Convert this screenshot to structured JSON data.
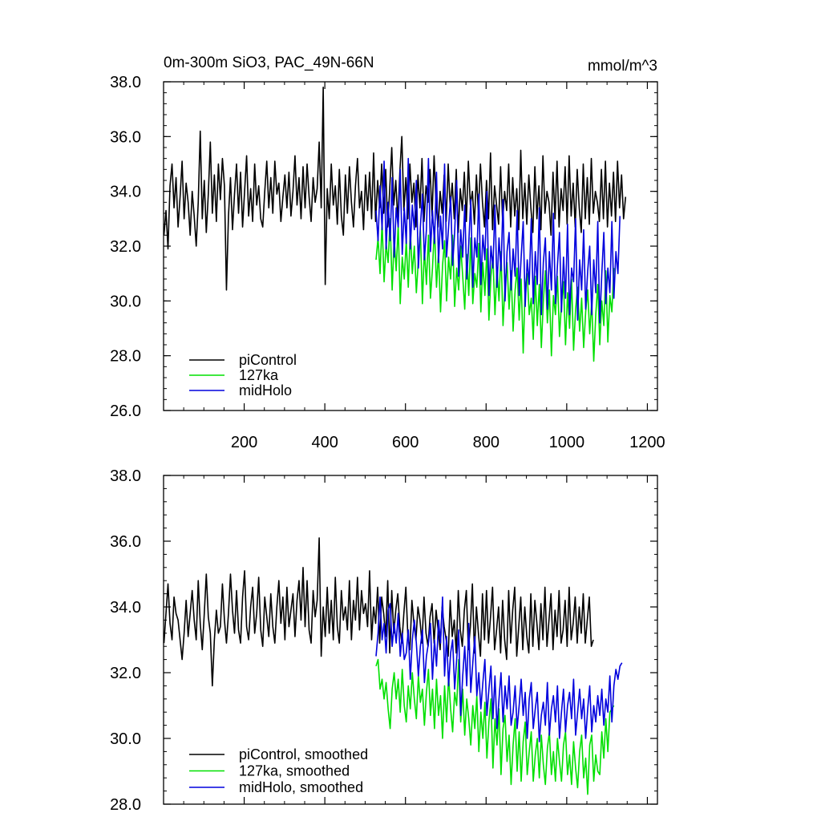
{
  "chart_data": [
    {
      "type": "line",
      "title": "0m-300m SiO3, PAC_49N-66N",
      "units": "mmol/m^3",
      "xlabel": "",
      "ylabel": "",
      "xlim": [
        0,
        1225
      ],
      "ylim": [
        26.0,
        38.0
      ],
      "yticks": [
        "26.0",
        "28.0",
        "30.0",
        "32.0",
        "34.0",
        "36.0",
        "38.0"
      ],
      "xticks": [
        "200",
        "400",
        "600",
        "800",
        "1000",
        "1200"
      ],
      "legend_position": "bottom-left",
      "series": [
        {
          "name": "piControl",
          "color": "#000000",
          "x_start": 1,
          "step": 5,
          "values": [
            32.4,
            33.3,
            31.9,
            34.2,
            35.0,
            33.4,
            34.5,
            32.7,
            33.8,
            35.1,
            33.0,
            34.3,
            33.6,
            32.4,
            34.0,
            33.1,
            32.0,
            33.6,
            36.2,
            33.0,
            34.4,
            32.5,
            33.9,
            35.8,
            33.2,
            34.6,
            32.9,
            35.0,
            33.7,
            35.2,
            34.2,
            30.4,
            33.1,
            34.5,
            32.6,
            33.9,
            35.0,
            33.2,
            34.7,
            32.7,
            34.0,
            35.3,
            33.1,
            34.1,
            32.9,
            35.0,
            33.5,
            34.2,
            33.0,
            32.7,
            34.0,
            35.1,
            33.4,
            34.5,
            33.2,
            35.1,
            33.9,
            34.3,
            32.9,
            33.8,
            34.6,
            33.4,
            34.7,
            33.1,
            34.0,
            35.3,
            33.5,
            34.5,
            33.0,
            34.9,
            33.4,
            35.0,
            33.8,
            32.9,
            34.5,
            33.6,
            34.1,
            35.8,
            33.4,
            37.8,
            30.6,
            34.1,
            33.0,
            35.0,
            33.5,
            34.2,
            32.8,
            34.8,
            33.1,
            32.4,
            34.6,
            33.2,
            34.9,
            33.6,
            32.7,
            34.2,
            35.2,
            33.4,
            34.0,
            32.6,
            34.6,
            33.3,
            34.7,
            33.0,
            35.4,
            32.9,
            34.4,
            33.4,
            35.0,
            33.2,
            34.8,
            32.7,
            34.1,
            35.6,
            33.5,
            34.4,
            32.9,
            34.7,
            36.0,
            33.3,
            34.5,
            33.0,
            35.0,
            33.6,
            34.3,
            32.7,
            34.6,
            33.4,
            35.2,
            32.9,
            34.2,
            33.6,
            34.8,
            33.1,
            35.3,
            33.5,
            32.7,
            34.0,
            33.2,
            34.6,
            32.9,
            35.0,
            33.4,
            34.3,
            33.0,
            34.8,
            32.5,
            34.1,
            33.3,
            34.7,
            32.9,
            35.1,
            33.5,
            34.0,
            32.8,
            34.6,
            33.2,
            35.0,
            33.6,
            32.7,
            34.4,
            33.0,
            35.4,
            32.6,
            34.2,
            33.5,
            32.8,
            34.9,
            32.9,
            34.0,
            33.3,
            35.0,
            32.7,
            34.5,
            33.1,
            34.1,
            32.6,
            35.5,
            33.0,
            34.3,
            32.8,
            34.6,
            33.4,
            32.5,
            34.9,
            33.0,
            34.2,
            32.6,
            35.3,
            33.2,
            34.0,
            33.6,
            32.4,
            34.7,
            33.0,
            35.1,
            32.7,
            34.1,
            33.3,
            34.9,
            32.8,
            35.3,
            33.1,
            34.3,
            32.7,
            34.8,
            33.4,
            32.5,
            35.0,
            33.0,
            34.5,
            32.8,
            35.2,
            33.2,
            34.0,
            33.6,
            32.9,
            34.8,
            33.0,
            35.1,
            32.7,
            34.3,
            33.1,
            34.7,
            32.9,
            35.1,
            33.4,
            34.6,
            33.0,
            33.8
          ]
        },
        {
          "name": "127ka",
          "color": "#00e000",
          "x_start": 527,
          "step": 5,
          "values": [
            31.5,
            32.3,
            31.0,
            32.9,
            30.7,
            32.1,
            31.4,
            33.0,
            30.4,
            32.3,
            31.1,
            32.8,
            29.9,
            31.6,
            30.8,
            32.2,
            30.5,
            32.6,
            31.0,
            32.0,
            30.3,
            31.5,
            32.6,
            29.9,
            31.9,
            30.6,
            32.4,
            30.1,
            31.2,
            32.7,
            30.5,
            31.8,
            29.6,
            31.3,
            32.2,
            30.0,
            31.6,
            30.8,
            32.4,
            29.8,
            31.2,
            30.4,
            32.0,
            30.9,
            29.7,
            31.7,
            30.2,
            32.3,
            29.9,
            31.0,
            30.5,
            32.1,
            29.6,
            31.4,
            30.2,
            31.9,
            29.3,
            30.9,
            31.6,
            29.5,
            31.2,
            30.0,
            31.8,
            29.1,
            30.6,
            31.4,
            29.7,
            31.1,
            28.9,
            30.4,
            31.2,
            29.3,
            30.8,
            28.1,
            30.5,
            31.0,
            29.5,
            30.1,
            28.6,
            30.9,
            29.1,
            30.6,
            28.3,
            30.0,
            31.1,
            29.2,
            30.4,
            28.0,
            30.2,
            29.5,
            30.9,
            28.7,
            29.9,
            30.7,
            28.4,
            30.3,
            29.0,
            30.8,
            28.2,
            29.7,
            30.5,
            28.9,
            30.1,
            28.3,
            29.6,
            30.4,
            28.8,
            30.0,
            27.8,
            29.5,
            30.6,
            28.4,
            30.0,
            29.1,
            31.1,
            28.5,
            30.2,
            29.6,
            31.2
          ]
        },
        {
          "name": "midHolo",
          "color": "#0000dd",
          "x_start": 527,
          "step": 5,
          "values": [
            33.3,
            32.2,
            34.2,
            32.6,
            35.1,
            31.9,
            33.6,
            32.2,
            34.5,
            31.6,
            33.4,
            32.7,
            34.8,
            31.7,
            33.4,
            32.1,
            35.2,
            31.9,
            33.5,
            32.6,
            34.4,
            31.2,
            32.7,
            33.9,
            31.5,
            32.6,
            35.2,
            31.8,
            33.3,
            32.1,
            34.7,
            31.4,
            33.1,
            31.9,
            35.0,
            31.6,
            32.7,
            33.8,
            31.3,
            32.5,
            34.4,
            30.9,
            32.6,
            31.6,
            33.5,
            30.8,
            32.1,
            33.7,
            30.5,
            32.3,
            31.6,
            33.9,
            30.6,
            32.4,
            31.5,
            34.0,
            30.2,
            32.0,
            31.2,
            33.5,
            30.5,
            32.3,
            31.1,
            33.7,
            30.0,
            31.8,
            32.5,
            30.4,
            31.9,
            30.9,
            33.3,
            30.2,
            31.6,
            32.9,
            29.8,
            31.5,
            30.6,
            33.0,
            29.9,
            31.8,
            30.6,
            33.4,
            29.5,
            31.4,
            32.3,
            29.7,
            31.8,
            30.4,
            33.2,
            29.9,
            31.3,
            32.5,
            29.6,
            31.6,
            30.1,
            32.8,
            29.5,
            31.2,
            30.7,
            33.0,
            29.3,
            31.5,
            30.4,
            32.6,
            29.7,
            31.1,
            32.0,
            29.5,
            31.5,
            30.3,
            32.9,
            29.2,
            31.0,
            32.5,
            29.9,
            31.2,
            30.3,
            32.9,
            30.1,
            31.8,
            31.0,
            33.1
          ]
        }
      ]
    },
    {
      "type": "line",
      "title": "",
      "xlim": [
        0,
        1225
      ],
      "ylim": [
        28.0,
        38.0
      ],
      "yticks": [
        "28.0",
        "30.0",
        "32.0",
        "34.0",
        "36.0",
        "38.0"
      ],
      "legend_position": "bottom-left",
      "series": [
        {
          "name": "piControl, smoothed",
          "color": "#000000",
          "x_start": 1,
          "step": 5,
          "values": [
            32.9,
            33.8,
            34.7,
            33.5,
            33.0,
            34.3,
            33.8,
            33.6,
            33.0,
            32.4,
            33.2,
            34.2,
            33.1,
            33.8,
            34.5,
            33.6,
            33.0,
            34.8,
            33.5,
            32.7,
            33.8,
            35.0,
            33.7,
            33.2,
            31.6,
            33.0,
            33.9,
            33.2,
            33.4,
            34.7,
            33.6,
            32.9,
            33.8,
            35.0,
            33.9,
            33.2,
            34.5,
            33.3,
            32.9,
            34.3,
            35.1,
            33.4,
            33.0,
            34.0,
            34.6,
            33.2,
            33.8,
            34.9,
            33.3,
            32.8,
            34.3,
            33.7,
            33.1,
            34.4,
            33.4,
            32.9,
            34.0,
            34.8,
            33.5,
            34.3,
            33.0,
            34.6,
            33.4,
            33.9,
            34.4,
            33.1,
            34.2,
            34.8,
            33.6,
            35.2,
            33.4,
            34.8,
            33.3,
            32.9,
            34.5,
            33.7,
            34.2,
            36.1,
            32.5,
            34.0,
            33.1,
            34.6,
            33.2,
            34.2,
            33.0,
            34.9,
            33.4,
            32.9,
            34.5,
            33.6,
            34.0,
            33.3,
            34.8,
            33.0,
            34.2,
            33.6,
            34.9,
            33.3,
            34.5,
            33.8,
            34.1,
            33.4,
            35.1,
            33.0,
            34.0,
            33.5,
            34.6,
            32.9,
            34.3,
            33.8,
            33.1,
            34.8,
            32.6,
            34.5,
            33.2,
            33.9,
            34.4,
            33.4,
            32.9,
            33.8,
            34.6,
            33.1,
            32.7,
            34.2,
            33.5,
            33.0,
            34.0,
            33.6,
            32.9,
            34.3,
            33.2,
            32.8,
            33.7,
            34.1,
            32.9,
            33.9,
            33.3,
            32.7,
            34.0,
            33.4,
            33.0,
            32.5,
            34.2,
            33.1,
            33.6,
            32.6,
            34.5,
            33.3,
            32.8,
            33.9,
            34.5,
            32.7,
            33.4,
            34.7,
            32.6,
            34.0,
            33.2,
            32.5,
            34.4,
            33.0,
            34.5,
            32.9,
            33.7,
            34.6,
            32.7,
            33.3,
            34.0,
            32.6,
            34.2,
            33.0,
            32.4,
            34.5,
            32.9,
            33.9,
            34.6,
            32.5,
            33.4,
            34.3,
            32.7,
            34.0,
            33.1,
            32.6,
            34.4,
            32.8,
            34.2,
            33.5,
            32.7,
            34.1,
            33.0,
            34.6,
            32.8,
            33.6,
            34.4,
            32.7,
            33.9,
            33.1,
            34.5,
            32.9,
            33.3,
            34.2,
            32.8,
            34.6,
            33.0,
            33.5,
            34.3,
            32.9,
            34.0,
            33.2,
            34.4,
            32.9,
            33.6,
            34.3,
            32.8,
            33.0
          ]
        },
        {
          "name": "127ka, smoothed",
          "color": "#00e000",
          "x_start": 527,
          "step": 5,
          "values": [
            32.2,
            32.4,
            31.5,
            31.8,
            31.2,
            31.7,
            30.9,
            30.3,
            31.5,
            32.0,
            31.2,
            31.8,
            30.8,
            32.1,
            31.0,
            30.5,
            31.6,
            30.9,
            32.0,
            31.2,
            30.6,
            31.9,
            31.1,
            31.5,
            30.4,
            31.4,
            32.1,
            30.7,
            31.5,
            30.3,
            31.8,
            30.7,
            31.3,
            30.0,
            31.6,
            30.5,
            31.9,
            30.9,
            30.2,
            31.4,
            31.0,
            32.4,
            30.5,
            31.5,
            30.1,
            31.2,
            30.6,
            29.8,
            31.0,
            30.3,
            31.3,
            29.6,
            30.8,
            30.0,
            31.1,
            29.4,
            30.5,
            31.2,
            29.1,
            30.6,
            29.8,
            30.9,
            28.9,
            30.3,
            30.7,
            29.3,
            30.1,
            28.6,
            29.8,
            30.6,
            29.0,
            30.2,
            28.7,
            29.9,
            30.5,
            28.9,
            29.6,
            30.2,
            28.7,
            29.5,
            30.0,
            28.8,
            30.1,
            29.2,
            28.6,
            29.7,
            30.2,
            28.9,
            29.6,
            28.7,
            30.0,
            29.3,
            28.7,
            29.8,
            30.2,
            28.9,
            29.5,
            28.6,
            29.9,
            29.1,
            28.5,
            29.6,
            30.1,
            28.8,
            29.4,
            28.3,
            29.8,
            30.1,
            28.7,
            29.5,
            29.0,
            28.9,
            30.2,
            29.4,
            30.6,
            29.6,
            30.8,
            30.9,
            31.0
          ]
        },
        {
          "name": "midHolo, smoothed",
          "color": "#0000dd",
          "x_start": 527,
          "step": 5,
          "values": [
            32.5,
            33.2,
            34.3,
            33.0,
            33.5,
            32.6,
            33.9,
            34.1,
            32.8,
            33.5,
            32.9,
            33.8,
            32.5,
            33.2,
            32.4,
            32.6,
            33.3,
            31.8,
            33.0,
            33.6,
            32.9,
            31.9,
            32.8,
            33.3,
            31.7,
            32.5,
            32.9,
            33.5,
            31.8,
            33.0,
            32.2,
            33.6,
            32.9,
            34.3,
            31.9,
            33.1,
            31.6,
            32.6,
            33.0,
            31.5,
            32.4,
            33.3,
            30.7,
            31.9,
            32.8,
            31.6,
            33.5,
            31.4,
            32.3,
            33.1,
            31.3,
            32.0,
            30.9,
            31.7,
            32.4,
            30.7,
            31.5,
            32.2,
            30.6,
            31.9,
            30.3,
            31.2,
            32.0,
            30.5,
            31.6,
            30.9,
            31.9,
            30.4,
            30.8,
            31.6,
            30.3,
            31.0,
            31.8,
            30.7,
            31.4,
            30.0,
            31.2,
            31.7,
            30.3,
            30.9,
            31.4,
            29.9,
            30.7,
            31.1,
            30.4,
            31.7,
            30.1,
            30.9,
            31.3,
            30.5,
            31.6,
            30.0,
            30.8,
            31.5,
            30.2,
            31.0,
            31.4,
            30.6,
            31.8,
            30.1,
            30.8,
            31.5,
            30.6,
            31.2,
            30.0,
            30.9,
            31.6,
            30.2,
            31.0,
            30.5,
            31.3,
            30.7,
            31.5,
            30.4,
            31.2,
            30.8,
            31.9,
            30.5,
            31.6,
            32.1,
            31.8,
            32.2,
            32.3
          ]
        }
      ]
    }
  ]
}
